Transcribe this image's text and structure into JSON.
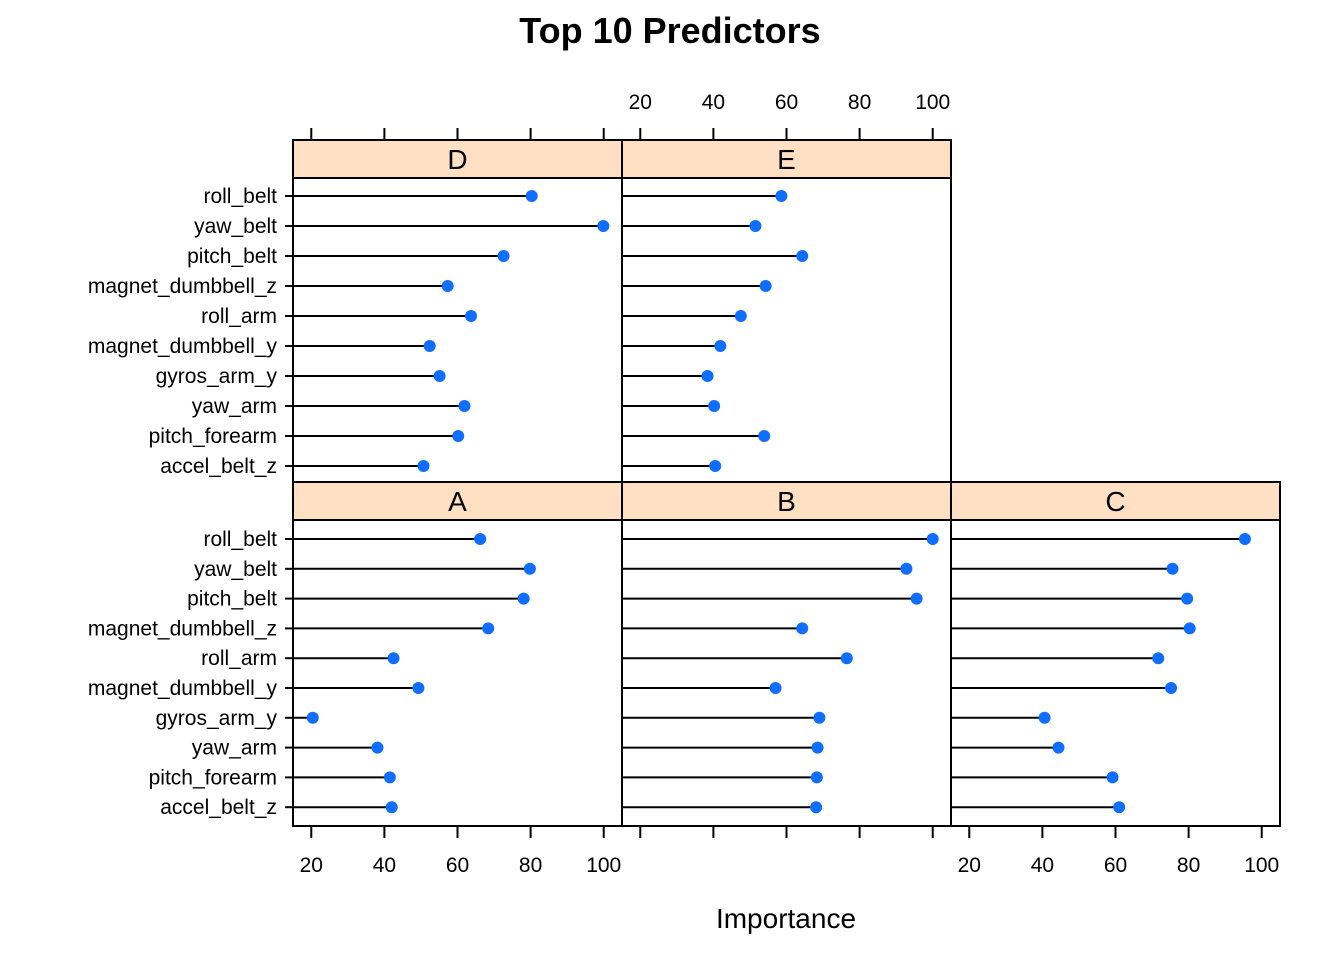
{
  "chart_data": {
    "type": "dotplot",
    "title": "Top 10 Predictors",
    "xlabel": "Importance",
    "xlim": [
      15,
      105
    ],
    "x_ticks": [
      20,
      40,
      60,
      80,
      100
    ],
    "categories": [
      "roll_belt",
      "yaw_belt",
      "pitch_belt",
      "magnet_dumbbell_z",
      "roll_arm",
      "magnet_dumbbell_y",
      "gyros_arm_y",
      "yaw_arm",
      "pitch_forearm",
      "accel_belt_z"
    ],
    "panels": [
      {
        "name": "A",
        "values": [
          66.2,
          79.8,
          78.1,
          68.4,
          42.5,
          49.3,
          20.4,
          38.1,
          41.5,
          42.0
        ]
      },
      {
        "name": "B",
        "values": [
          100.0,
          92.8,
          95.6,
          64.3,
          76.5,
          57.0,
          69.0,
          68.5,
          68.3,
          68.1
        ]
      },
      {
        "name": "C",
        "values": [
          95.4,
          75.6,
          79.6,
          80.3,
          71.7,
          75.2,
          40.6,
          44.4,
          59.2,
          61.0
        ]
      },
      {
        "name": "D",
        "values": [
          80.3,
          99.9,
          72.6,
          57.3,
          63.7,
          52.4,
          55.1,
          61.9,
          60.2,
          50.7
        ]
      },
      {
        "name": "E",
        "values": [
          58.6,
          51.5,
          64.3,
          54.3,
          47.5,
          41.9,
          38.4,
          40.2,
          53.9,
          40.5
        ]
      }
    ],
    "layout": "3 columns x 2 rows; top row: D, E; bottom row: A, B, C",
    "colors": {
      "dot": "#0f6efd",
      "strip": "#ffe0c2"
    }
  }
}
